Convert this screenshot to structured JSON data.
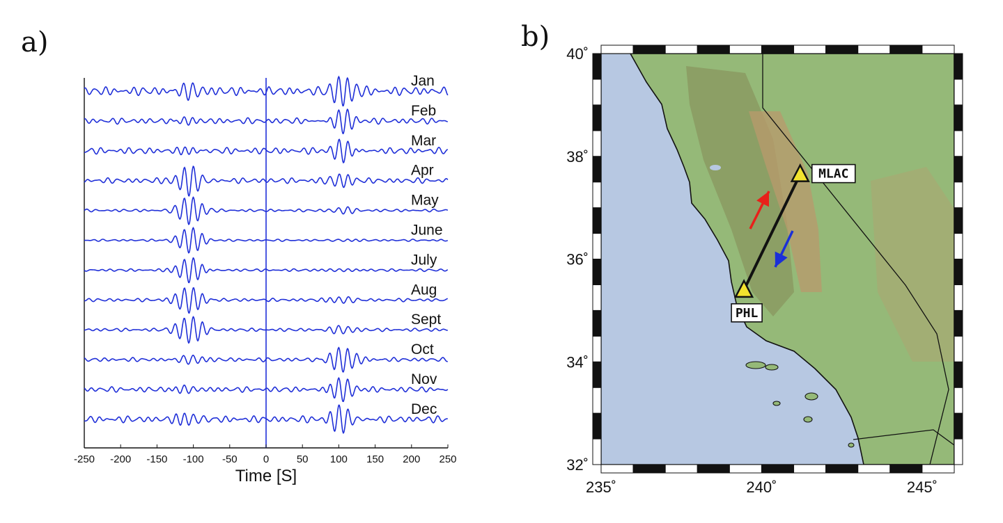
{
  "panel_a": {
    "label": "a)"
  },
  "panel_b": {
    "label": "b)"
  },
  "colors": {
    "trace": "#1f2fd8",
    "sea": "#b7c8e2",
    "land": "#95b978",
    "valley": "#8a9860",
    "mountain": "#b99a6c",
    "arrow_forward": "#e8201a",
    "arrow_backward": "#1a2fd8",
    "station_fill": "#f2e22e"
  },
  "chart_data": [
    {
      "type": "line",
      "panel": "a",
      "xlabel": "Time [S]",
      "xlim": [
        -250,
        250
      ],
      "xticks": [
        -250,
        -200,
        -150,
        -100,
        -50,
        0,
        50,
        100,
        150,
        200,
        250
      ],
      "series": [
        {
          "name": "Jan",
          "causal_amp": 1.0,
          "acausal_amp": 0.45,
          "noise": 0.32
        },
        {
          "name": "Feb",
          "causal_amp": 0.95,
          "acausal_amp": 0.35,
          "noise": 0.22
        },
        {
          "name": "Mar",
          "causal_amp": 0.9,
          "acausal_amp": 0.35,
          "noise": 0.24
        },
        {
          "name": "Apr",
          "causal_amp": 0.45,
          "acausal_amp": 1.0,
          "noise": 0.2
        },
        {
          "name": "May",
          "causal_amp": 0.2,
          "acausal_amp": 1.0,
          "noise": 0.1
        },
        {
          "name": "June",
          "causal_amp": 0.1,
          "acausal_amp": 1.0,
          "noise": 0.08
        },
        {
          "name": "July",
          "causal_amp": 0.2,
          "acausal_amp": 1.0,
          "noise": 0.1
        },
        {
          "name": "Aug",
          "causal_amp": 0.25,
          "acausal_amp": 1.0,
          "noise": 0.12
        },
        {
          "name": "Sept",
          "causal_amp": 0.25,
          "acausal_amp": 1.0,
          "noise": 0.12
        },
        {
          "name": "Oct",
          "causal_amp": 1.0,
          "acausal_amp": 0.35,
          "noise": 0.15
        },
        {
          "name": "Nov",
          "causal_amp": 1.0,
          "acausal_amp": 0.45,
          "noise": 0.2
        },
        {
          "name": "Dec",
          "causal_amp": 1.0,
          "acausal_amp": 0.5,
          "noise": 0.25
        }
      ],
      "signal_center_s": 105,
      "signal_period_s": 12.5
    },
    {
      "type": "map",
      "panel": "b",
      "lon_range": [
        235,
        246
      ],
      "lat_range": [
        32,
        40
      ],
      "lon_ticks": [
        {
          "value": 235,
          "label": "235˚"
        },
        {
          "value": 240,
          "label": "240˚"
        },
        {
          "value": 245,
          "label": "245˚"
        }
      ],
      "lat_ticks": [
        {
          "value": 32,
          "label": "32˚"
        },
        {
          "value": 34,
          "label": "34˚"
        },
        {
          "value": 36,
          "label": "36˚"
        },
        {
          "value": 38,
          "label": "38˚"
        },
        {
          "value": 40,
          "label": "40˚"
        }
      ],
      "stations": [
        {
          "name": "MLAC",
          "lon": 241.2,
          "lat": 37.65
        },
        {
          "name": "PHL",
          "lon": 239.45,
          "lat": 35.4
        }
      ]
    }
  ]
}
